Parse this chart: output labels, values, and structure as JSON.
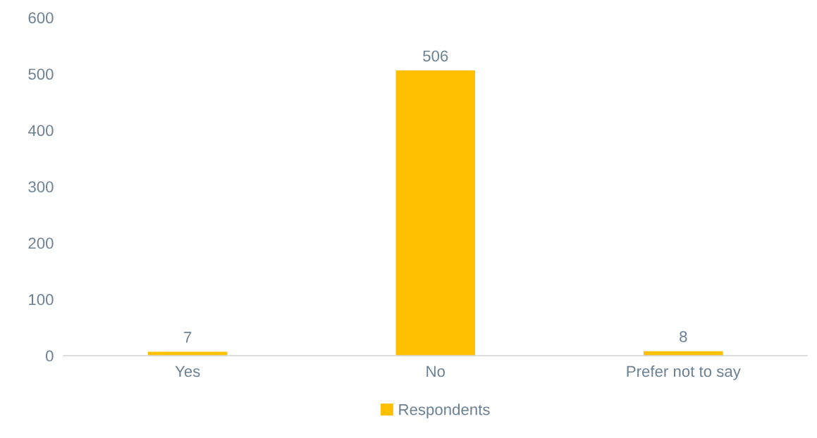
{
  "chart_data": {
    "type": "bar",
    "categories": [
      "Yes",
      "No",
      "Prefer not to say"
    ],
    "series": [
      {
        "name": "Respondents",
        "color": "#ffc000",
        "values": [
          7,
          506,
          8
        ]
      }
    ],
    "ylim": [
      0,
      600
    ],
    "yticks": [
      0,
      100,
      200,
      300,
      400,
      500,
      600
    ],
    "data_labels": true,
    "grid": false,
    "legend": "bottom"
  }
}
